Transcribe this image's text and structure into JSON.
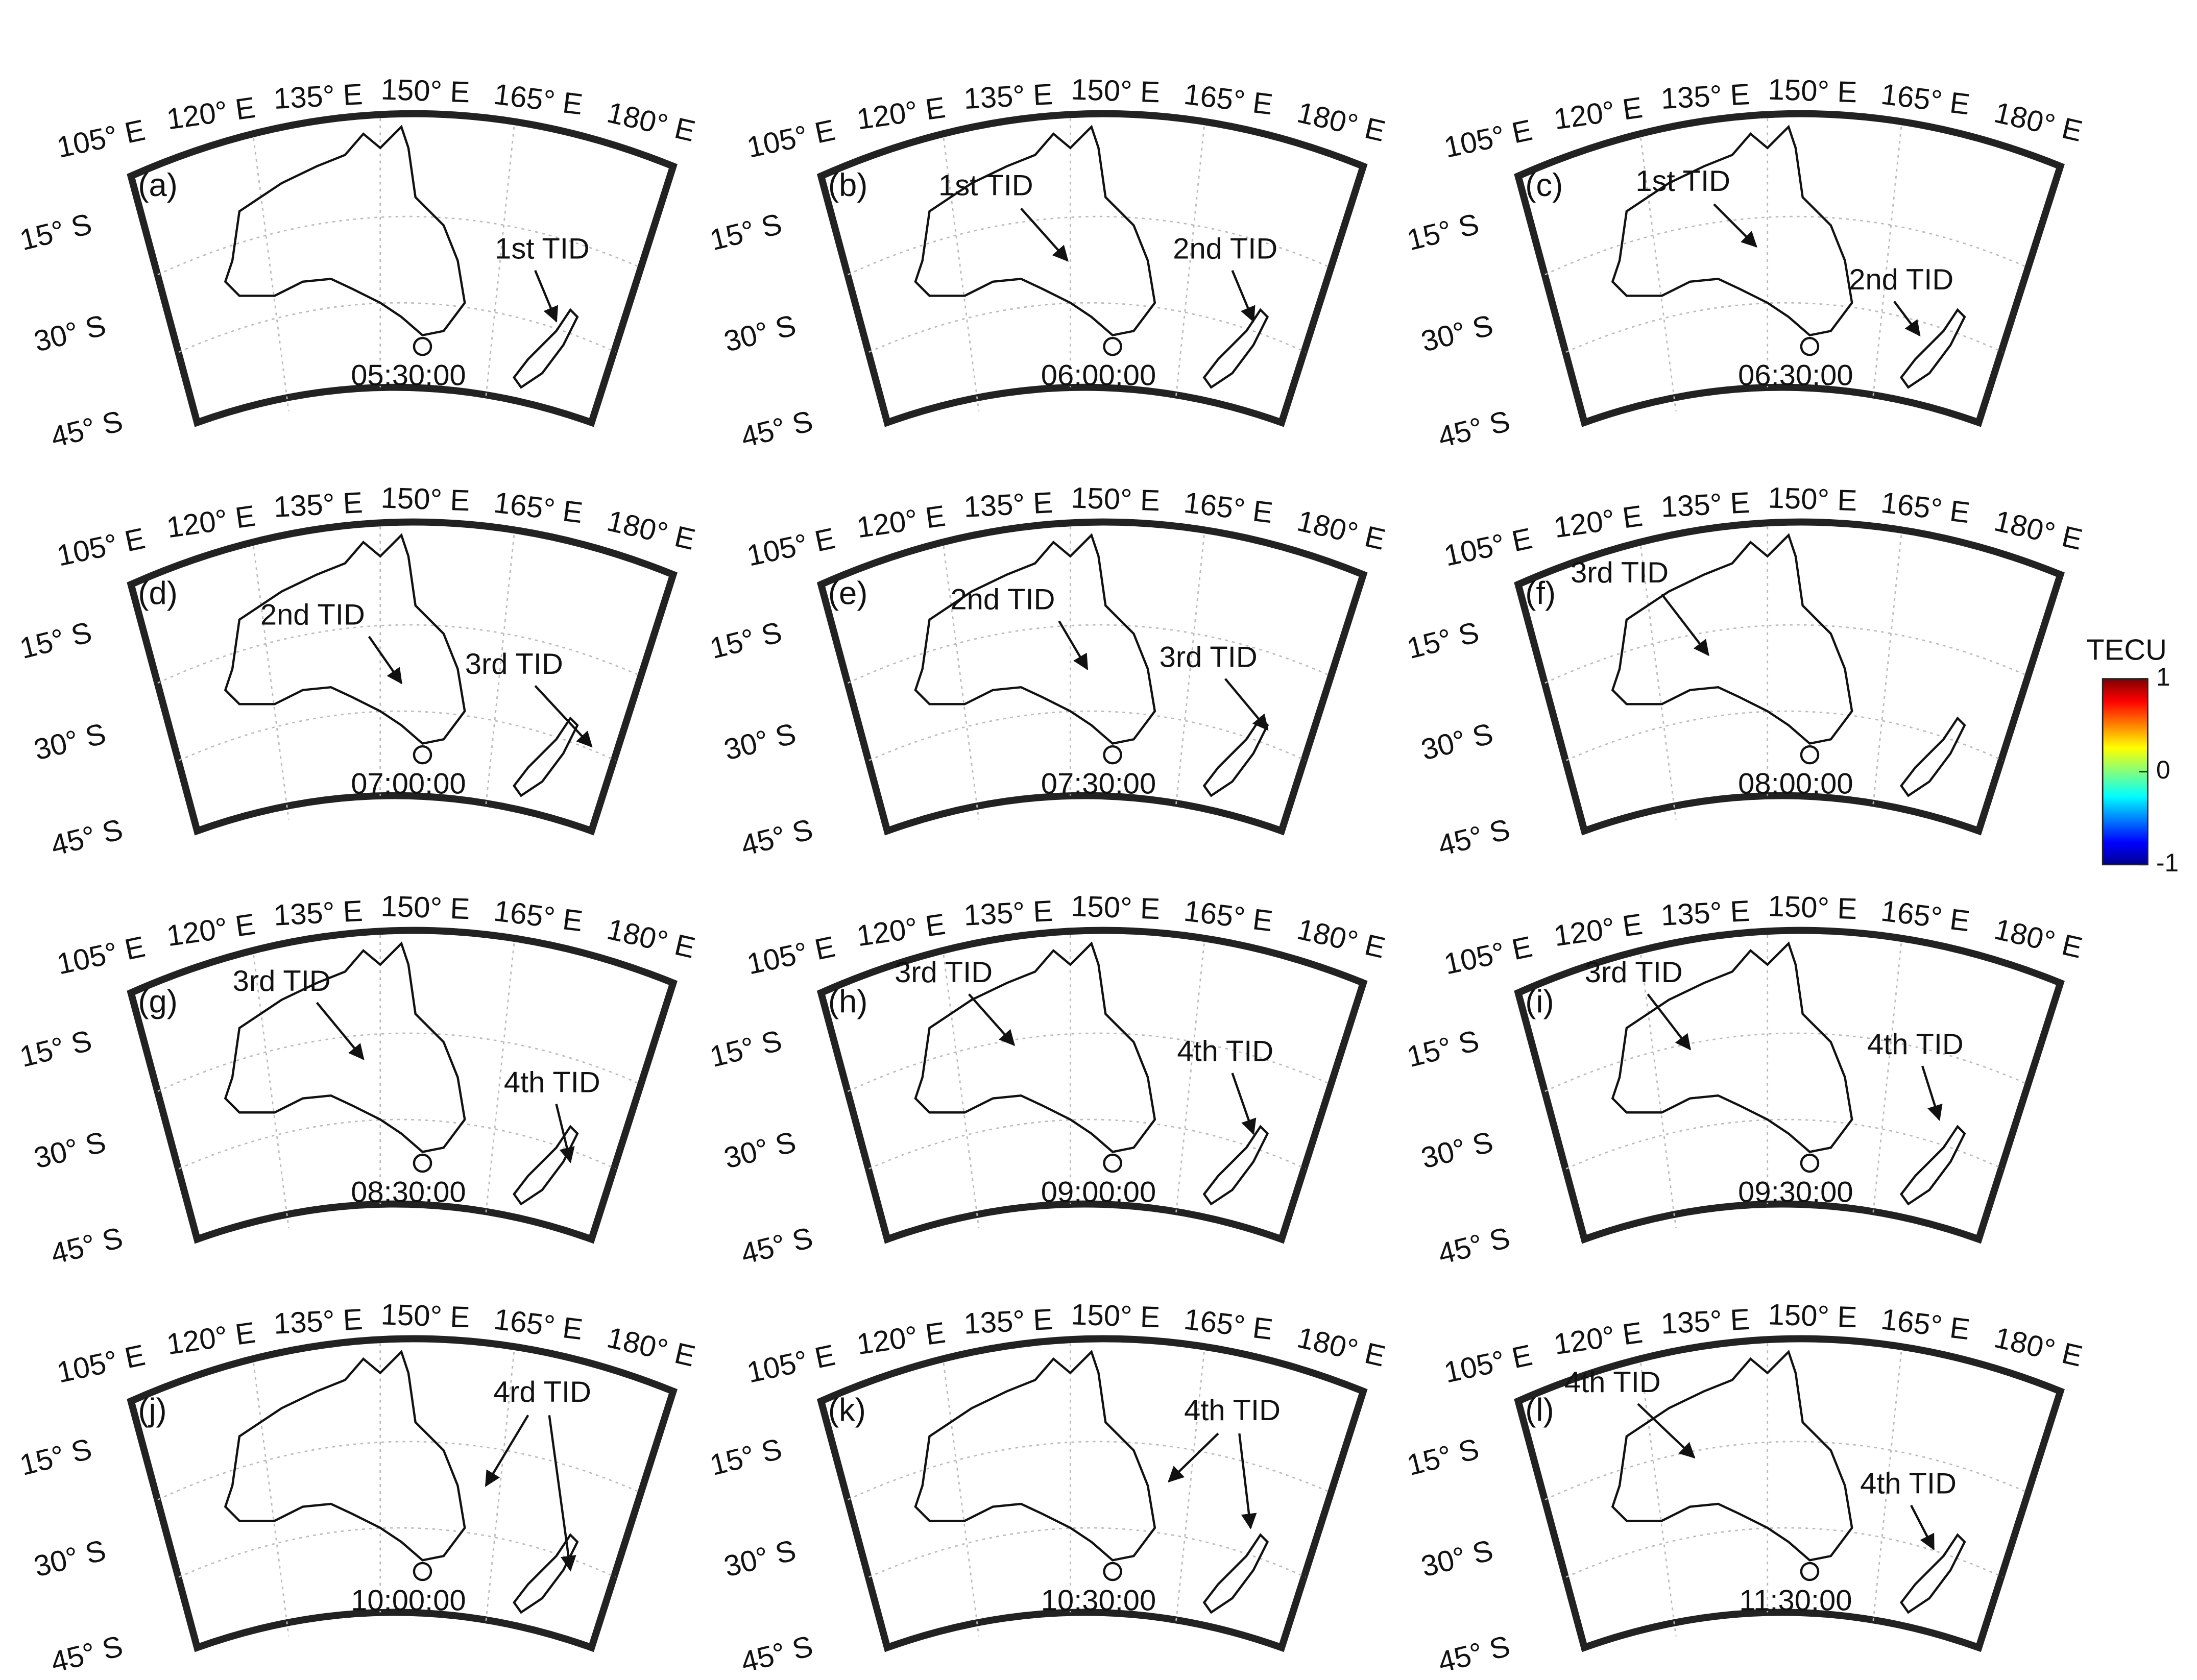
{
  "panels": [
    {
      "label": "(a)",
      "time": "05:30:00",
      "annotations": [
        "1st TID"
      ]
    },
    {
      "label": "(b)",
      "time": "06:00:00",
      "annotations": [
        "1st TID",
        "2nd TID"
      ]
    },
    {
      "label": "(c)",
      "time": "06:30:00",
      "annotations": [
        "1st TID",
        "2nd TID"
      ]
    },
    {
      "label": "(d)",
      "time": "07:00:00",
      "annotations": [
        "2nd TID",
        "3rd TID"
      ]
    },
    {
      "label": "(e)",
      "time": "07:30:00",
      "annotations": [
        "2nd TID",
        "3rd TID"
      ]
    },
    {
      "label": "(f)",
      "time": "08:00:00",
      "annotations": [
        "3rd TID"
      ]
    },
    {
      "label": "(g)",
      "time": "08:30:00",
      "annotations": [
        "3rd TID",
        "4th TID"
      ]
    },
    {
      "label": "(h)",
      "time": "09:00:00",
      "annotations": [
        "3rd TID",
        "4th TID"
      ]
    },
    {
      "label": "(i)",
      "time": "09:30:00",
      "annotations": [
        "3rd TID",
        "4th TID"
      ]
    },
    {
      "label": "(j)",
      "time": "10:00:00",
      "annotations": [
        "4rd TID"
      ]
    },
    {
      "label": "(k)",
      "time": "10:30:00",
      "annotations": [
        "4th TID"
      ]
    },
    {
      "label": "(l)",
      "time": "11:30:00",
      "annotations": [
        "4th TID",
        "4th TID"
      ]
    }
  ],
  "lon_labels": [
    "105° E",
    "120° E",
    "135° E",
    "150° E",
    "165° E",
    "180° E"
  ],
  "lat_labels": [
    "15° S",
    "30° S",
    "45° S"
  ],
  "colorbar": {
    "title": "TECU",
    "ylim": [
      -1,
      1
    ],
    "ticks": [
      1,
      0,
      -1
    ]
  }
}
